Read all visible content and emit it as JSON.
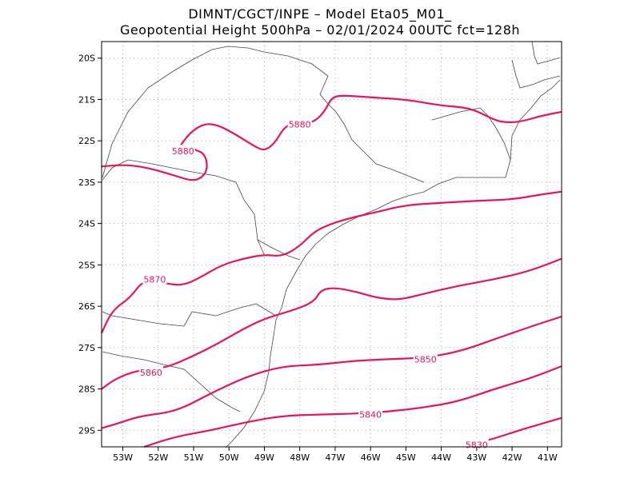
{
  "title": {
    "line1": "DIMNT/CGCT/INPE –  Model Eta05_M01_",
    "line2": "Geopotential Height 500hPa –  02/01/2024 00UTC fct=128h"
  },
  "colors": {
    "contour": "#e8145a",
    "coast": "#444444",
    "grid": "#aaaaaa"
  },
  "axes": {
    "lon_range": [
      -53.6,
      -40.6
    ],
    "lat_range": [
      -29.4,
      -19.6
    ],
    "lon_ticks": [
      "53W",
      "52W",
      "51W",
      "50W",
      "49W",
      "48W",
      "47W",
      "46W",
      "45W",
      "44W",
      "43W",
      "42W",
      "41W"
    ],
    "lat_ticks": [
      "20S",
      "21S",
      "22S",
      "23S",
      "24S",
      "25S",
      "26S",
      "27S",
      "28S",
      "29S"
    ]
  },
  "contours": [
    {
      "label": "5880",
      "points": [
        [
          -53.6,
          -22.62
        ],
        [
          -53.0,
          -22.58
        ],
        [
          -52.5,
          -22.62
        ],
        [
          -52.0,
          -22.72
        ],
        [
          -51.5,
          -22.85
        ],
        [
          -51.0,
          -22.98
        ],
        [
          -50.7,
          -22.85
        ],
        [
          -50.6,
          -22.6
        ],
        [
          -50.7,
          -22.3
        ],
        [
          -51.0,
          -22.2
        ],
        [
          -51.3,
          -22.12
        ]
      ],
      "label_at": [
        -51.3,
        -22.25
      ]
    },
    {
      "label": "5880",
      "points": [
        [
          -51.4,
          -22.15
        ],
        [
          -51.1,
          -21.8
        ],
        [
          -50.7,
          -21.58
        ],
        [
          -50.3,
          -21.62
        ],
        [
          -49.8,
          -21.85
        ],
        [
          -49.3,
          -22.12
        ],
        [
          -49.0,
          -22.25
        ],
        [
          -48.7,
          -22.05
        ],
        [
          -48.5,
          -21.75
        ],
        [
          -48.3,
          -21.6
        ],
        [
          -48.0,
          -21.58
        ],
        [
          -47.6,
          -21.55
        ],
        [
          -47.3,
          -21.3
        ],
        [
          -47.1,
          -20.95
        ],
        [
          -46.8,
          -20.9
        ],
        [
          -46.0,
          -20.95
        ],
        [
          -45.0,
          -21.0
        ],
        [
          -44.0,
          -21.15
        ],
        [
          -43.2,
          -21.2
        ],
        [
          -42.6,
          -21.45
        ],
        [
          -42.3,
          -21.55
        ],
        [
          -41.8,
          -21.55
        ],
        [
          -41.2,
          -21.4
        ],
        [
          -40.6,
          -21.3
        ]
      ],
      "label_at": [
        -48.0,
        -21.6
      ]
    },
    {
      "label": "5870",
      "points": [
        [
          -53.6,
          -26.65
        ],
        [
          -53.3,
          -26.1
        ],
        [
          -52.8,
          -25.8
        ],
        [
          -52.4,
          -25.35
        ],
        [
          -51.8,
          -25.45
        ],
        [
          -51.3,
          -25.5
        ],
        [
          -50.8,
          -25.3
        ],
        [
          -50.2,
          -25.0
        ],
        [
          -49.6,
          -24.85
        ],
        [
          -49.0,
          -24.75
        ],
        [
          -48.5,
          -24.8
        ],
        [
          -48.0,
          -24.55
        ],
        [
          -47.6,
          -24.2
        ],
        [
          -47.1,
          -24.0
        ],
        [
          -46.5,
          -23.85
        ],
        [
          -45.8,
          -23.72
        ],
        [
          -45.0,
          -23.55
        ],
        [
          -44.0,
          -23.5
        ],
        [
          -43.0,
          -23.45
        ],
        [
          -42.0,
          -23.42
        ],
        [
          -41.2,
          -23.3
        ],
        [
          -40.6,
          -23.23
        ]
      ],
      "label_at": [
        -52.1,
        -25.35
      ]
    },
    {
      "label": "5860",
      "points": [
        [
          -53.6,
          -28.0
        ],
        [
          -53.2,
          -27.75
        ],
        [
          -52.6,
          -27.55
        ],
        [
          -51.8,
          -27.5
        ],
        [
          -51.0,
          -27.2
        ],
        [
          -50.3,
          -26.9
        ],
        [
          -49.6,
          -26.55
        ],
        [
          -49.0,
          -26.3
        ],
        [
          -48.2,
          -26.1
        ],
        [
          -47.6,
          -25.9
        ],
        [
          -47.4,
          -25.6
        ],
        [
          -47.0,
          -25.55
        ],
        [
          -46.4,
          -25.65
        ],
        [
          -45.8,
          -25.8
        ],
        [
          -45.2,
          -25.85
        ],
        [
          -44.5,
          -25.7
        ],
        [
          -43.5,
          -25.5
        ],
        [
          -42.5,
          -25.35
        ],
        [
          -41.5,
          -25.15
        ],
        [
          -40.6,
          -24.85
        ]
      ],
      "label_at": [
        -52.2,
        -27.6
      ]
    },
    {
      "label": "5850",
      "points": [
        [
          -53.6,
          -28.95
        ],
        [
          -53.2,
          -28.85
        ],
        [
          -52.5,
          -28.65
        ],
        [
          -51.5,
          -28.55
        ],
        [
          -50.5,
          -28.1
        ],
        [
          -49.5,
          -27.7
        ],
        [
          -48.5,
          -27.45
        ],
        [
          -47.5,
          -27.42
        ],
        [
          -46.5,
          -27.32
        ],
        [
          -45.5,
          -27.28
        ],
        [
          -44.5,
          -27.25
        ],
        [
          -43.5,
          -27.1
        ],
        [
          -42.5,
          -26.8
        ],
        [
          -41.5,
          -26.5
        ],
        [
          -40.6,
          -26.25
        ]
      ],
      "label_at": [
        -44.45,
        -27.28
      ]
    },
    {
      "label": "5840",
      "points": [
        [
          -52.4,
          -29.4
        ],
        [
          -51.5,
          -29.15
        ],
        [
          -50.5,
          -29.0
        ],
        [
          -49.5,
          -28.8
        ],
        [
          -48.5,
          -28.65
        ],
        [
          -47.5,
          -28.62
        ],
        [
          -46.5,
          -28.6
        ],
        [
          -45.5,
          -28.55
        ],
        [
          -44.5,
          -28.45
        ],
        [
          -43.5,
          -28.3
        ],
        [
          -42.5,
          -28.0
        ],
        [
          -41.5,
          -27.75
        ],
        [
          -40.6,
          -27.45
        ]
      ],
      "label_at": [
        -46.0,
        -28.62
      ]
    },
    {
      "label": "5830",
      "points": [
        [
          -43.2,
          -29.35
        ],
        [
          -42.5,
          -29.2
        ],
        [
          -41.8,
          -29.0
        ],
        [
          -41.2,
          -28.85
        ],
        [
          -40.6,
          -28.7
        ]
      ],
      "label_at": [
        -43.0,
        -29.35
      ]
    }
  ]
}
